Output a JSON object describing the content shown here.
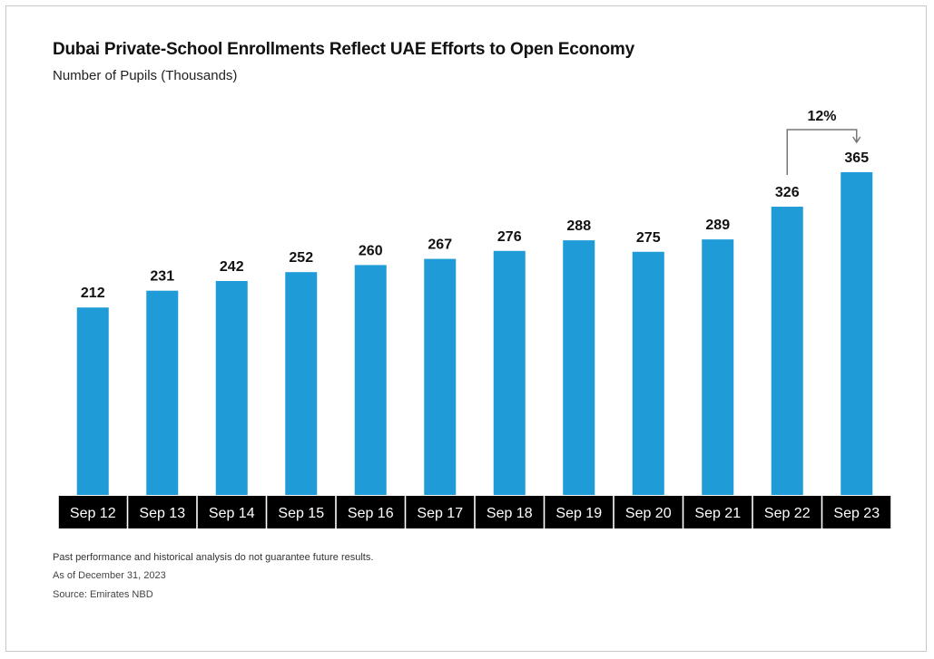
{
  "chart_data": {
    "type": "bar",
    "title": "Dubai Private-School Enrollments Reflect UAE Efforts to Open Economy",
    "subtitle": "Number of Pupils (Thousands)",
    "categories": [
      "Sep 12",
      "Sep 13",
      "Sep 14",
      "Sep 15",
      "Sep 16",
      "Sep 17",
      "Sep 18",
      "Sep 19",
      "Sep 20",
      "Sep 21",
      "Sep 22",
      "Sep 23"
    ],
    "values": [
      212,
      231,
      242,
      252,
      260,
      267,
      276,
      288,
      275,
      289,
      326,
      365
    ],
    "data_labels": [
      "212",
      "231",
      "242",
      "252",
      "260",
      "267",
      "276",
      "288",
      "275",
      "289",
      "326",
      "365"
    ],
    "bar_color": "#1f9bd7",
    "annotation": {
      "text": "12%",
      "from": "Sep 22",
      "to": "Sep 23"
    },
    "ylim": [
      0,
      365
    ],
    "grid": false
  },
  "notes": {
    "disclaimer": "Past performance and historical analysis do not guarantee future results.",
    "as_of": "As of December 31, 2023",
    "source": "Source: Emirates NBD"
  }
}
